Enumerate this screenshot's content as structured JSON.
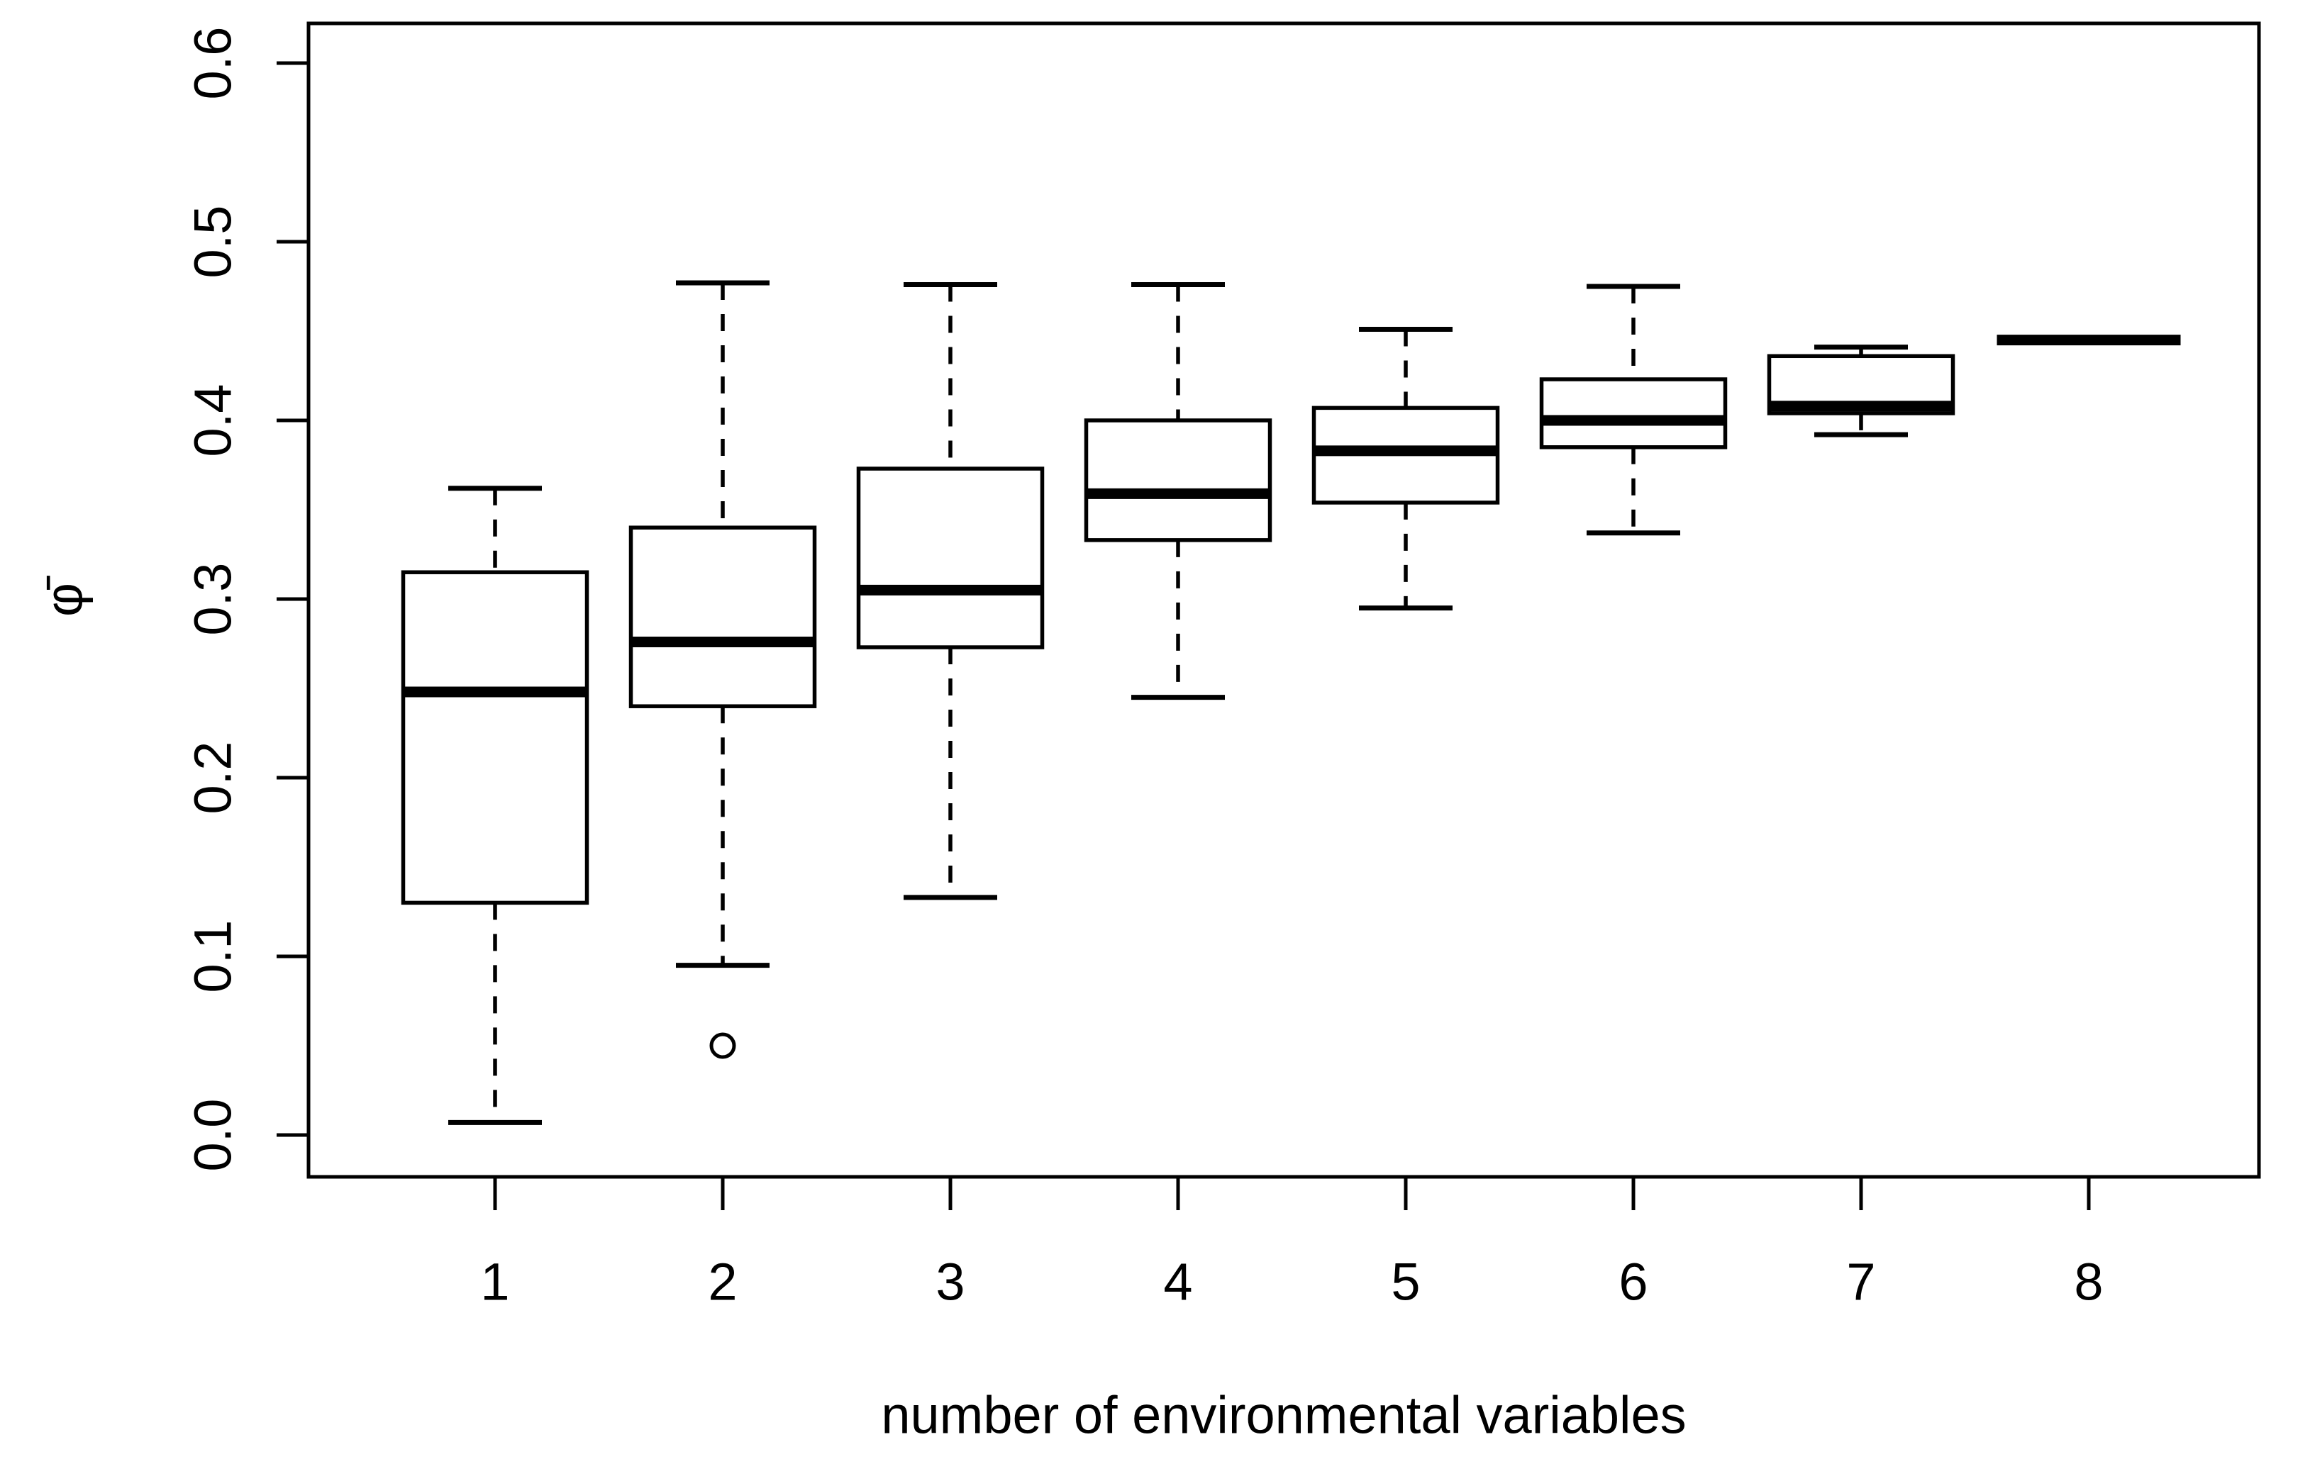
{
  "chart_data": {
    "type": "boxplot",
    "title": "",
    "xlabel": "number of environmental variables",
    "ylabel": "φ̄",
    "categories": [
      "1",
      "2",
      "3",
      "4",
      "5",
      "6",
      "7",
      "8"
    ],
    "ylim": [
      0.0,
      0.6
    ],
    "yticks": [
      0.0,
      0.1,
      0.2,
      0.3,
      0.4,
      0.5,
      0.6
    ],
    "ytick_labels": [
      "0.0",
      "0.1",
      "0.2",
      "0.3",
      "0.4",
      "0.5",
      "0.6"
    ],
    "grid": false,
    "legend": "none",
    "frame": "full-box",
    "colors": {
      "stroke": "#000000",
      "background": "#ffffff",
      "box_fill": "#ffffff"
    },
    "series": [
      {
        "category": "1",
        "whisker_low": 0.007,
        "q1": 0.13,
        "median": 0.248,
        "q3": 0.315,
        "whisker_high": 0.362,
        "outliers": []
      },
      {
        "category": "2",
        "whisker_low": 0.095,
        "q1": 0.24,
        "median": 0.276,
        "q3": 0.34,
        "whisker_high": 0.477,
        "outliers": [
          0.05
        ]
      },
      {
        "category": "3",
        "whisker_low": 0.133,
        "q1": 0.273,
        "median": 0.305,
        "q3": 0.373,
        "whisker_high": 0.476,
        "outliers": []
      },
      {
        "category": "4",
        "whisker_low": 0.245,
        "q1": 0.333,
        "median": 0.359,
        "q3": 0.4,
        "whisker_high": 0.476,
        "outliers": []
      },
      {
        "category": "5",
        "whisker_low": 0.295,
        "q1": 0.354,
        "median": 0.383,
        "q3": 0.407,
        "whisker_high": 0.451,
        "outliers": []
      },
      {
        "category": "6",
        "whisker_low": 0.337,
        "q1": 0.385,
        "median": 0.4,
        "q3": 0.423,
        "whisker_high": 0.475,
        "outliers": []
      },
      {
        "category": "7",
        "whisker_low": 0.392,
        "q1": 0.404,
        "median": 0.408,
        "q3": 0.436,
        "whisker_high": 0.441,
        "outliers": []
      },
      {
        "category": "8",
        "whisker_low": 0.445,
        "q1": 0.445,
        "median": 0.445,
        "q3": 0.445,
        "whisker_high": 0.445,
        "outliers": []
      }
    ]
  }
}
